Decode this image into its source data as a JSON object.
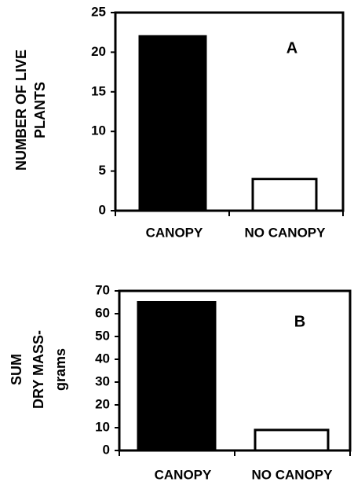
{
  "chart_data": [
    {
      "type": "bar",
      "annotation": "A",
      "ylabel": [
        "NUMBER OF LIVE",
        "PLANTS"
      ],
      "categories": [
        "CANOPY",
        "NO CANOPY"
      ],
      "values": [
        22,
        4
      ],
      "colors": [
        "#000000",
        "#ffffff"
      ],
      "ylim": [
        0,
        25
      ],
      "yticks": [
        0,
        5,
        10,
        15,
        20,
        25
      ]
    },
    {
      "type": "bar",
      "annotation": "B",
      "ylabel": [
        "SUM",
        "DRY MASS-",
        "grams"
      ],
      "categories": [
        "CANOPY",
        "NO CANOPY"
      ],
      "values": [
        65,
        9
      ],
      "colors": [
        "#000000",
        "#ffffff"
      ],
      "ylim": [
        0,
        70
      ],
      "yticks": [
        0,
        10,
        20,
        30,
        40,
        50,
        60,
        70
      ]
    }
  ]
}
